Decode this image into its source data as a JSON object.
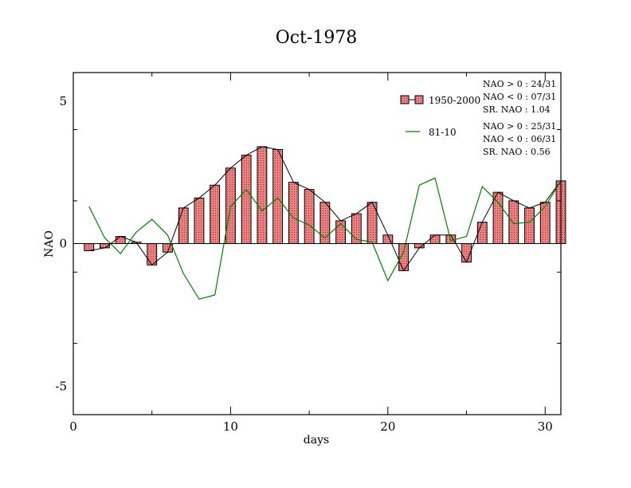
{
  "chart_data": {
    "type": "bar",
    "title": "Oct-1978",
    "xlabel": "days",
    "ylabel": "NAO",
    "xlim": [
      0,
      31
    ],
    "ylim": [
      -6,
      6
    ],
    "xticks": [
      0,
      10,
      20,
      30
    ],
    "yticks": [
      -5,
      0,
      5
    ],
    "grid": false,
    "legend_position": "top-right",
    "x": [
      1,
      2,
      3,
      4,
      5,
      6,
      7,
      8,
      9,
      10,
      11,
      12,
      13,
      14,
      15,
      16,
      17,
      18,
      19,
      20,
      21,
      22,
      23,
      24,
      25,
      26,
      27,
      28,
      29,
      30,
      31
    ],
    "series": [
      {
        "name": "1950-2000",
        "kind": "bar",
        "fill": "#f08080",
        "values": [
          -0.25,
          -0.15,
          0.25,
          0.05,
          -0.75,
          -0.3,
          1.25,
          1.6,
          2.05,
          2.65,
          3.1,
          3.4,
          3.3,
          2.15,
          1.9,
          1.45,
          0.8,
          1.05,
          1.45,
          0.3,
          -0.95,
          -0.15,
          0.3,
          0.3,
          -0.65,
          0.75,
          1.8,
          1.5,
          1.25,
          1.45,
          2.2
        ],
        "stats": {
          "pos": "NAO > 0 : 24/31",
          "neg": "NAO < 0 : 07/31",
          "sr": "SR. NAO :  1.04"
        }
      },
      {
        "name": "81-10",
        "kind": "line",
        "color": "#008000",
        "values": [
          1.3,
          0.2,
          -0.35,
          0.4,
          0.85,
          0.3,
          -1.05,
          -1.95,
          -1.8,
          1.3,
          1.9,
          1.15,
          1.6,
          0.9,
          0.65,
          0.2,
          0.7,
          0.15,
          0.05,
          -1.3,
          -0.3,
          2.05,
          2.3,
          0.1,
          0.25,
          2.0,
          1.45,
          0.7,
          0.75,
          1.3,
          2.2
        ],
        "stats": {
          "pos": "NAO > 0 : 25/31",
          "neg": "NAO < 0 : 06/31",
          "sr": "SR. NAO :  0.56"
        }
      }
    ]
  }
}
